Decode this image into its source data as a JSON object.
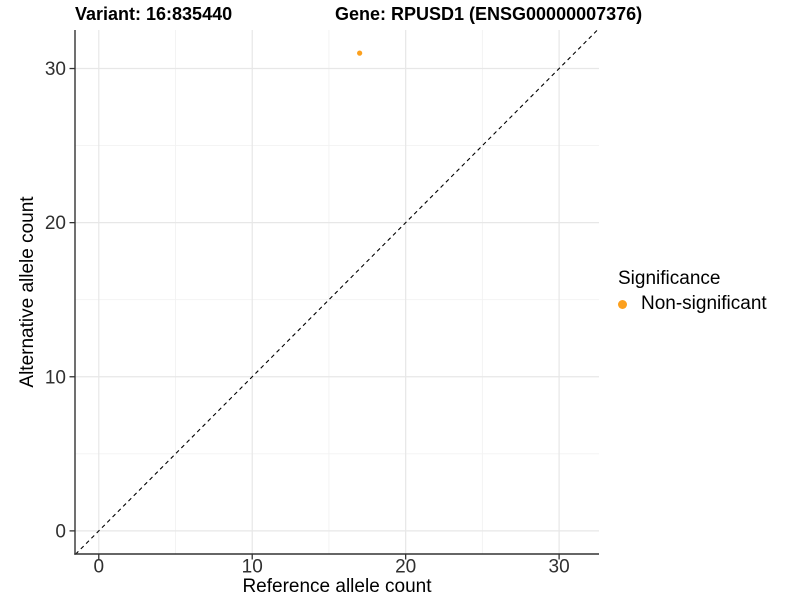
{
  "titles": {
    "variant": "Variant: 16:835440",
    "gene": "Gene: RPUSD1 (ENSG00000007376)"
  },
  "chart_data": {
    "type": "scatter",
    "title": "Variant: 16:835440   Gene: RPUSD1 (ENSG00000007376)",
    "xlabel": "Reference allele count",
    "ylabel": "Alternative allele count",
    "xlim": [
      -1.55,
      32.6
    ],
    "ylim": [
      -1.5,
      32.5
    ],
    "x_major_ticks": [
      0,
      10,
      20,
      30
    ],
    "x_minor_ticks": [
      5,
      15,
      25
    ],
    "y_major_ticks": [
      0,
      10,
      20,
      30
    ],
    "y_minor_ticks": [
      5,
      15,
      25
    ],
    "grid": true,
    "points": [
      {
        "x": 17,
        "y": 31,
        "series": "Non-significant"
      }
    ],
    "reference_line": {
      "slope": 1,
      "intercept": 0,
      "style": "dashed"
    },
    "legend": {
      "title": "Significance",
      "position": "right",
      "entries": [
        {
          "label": "Non-significant",
          "color": "#FCA01E"
        }
      ]
    }
  },
  "colors": {
    "point": "#FCA01E",
    "axis_line": "#333333",
    "tick_label": "#303030",
    "grid_major": "#E7E7E7",
    "grid_minor": "#F2F2F2",
    "reference_line": "#000000",
    "background": "#FFFFFF"
  }
}
